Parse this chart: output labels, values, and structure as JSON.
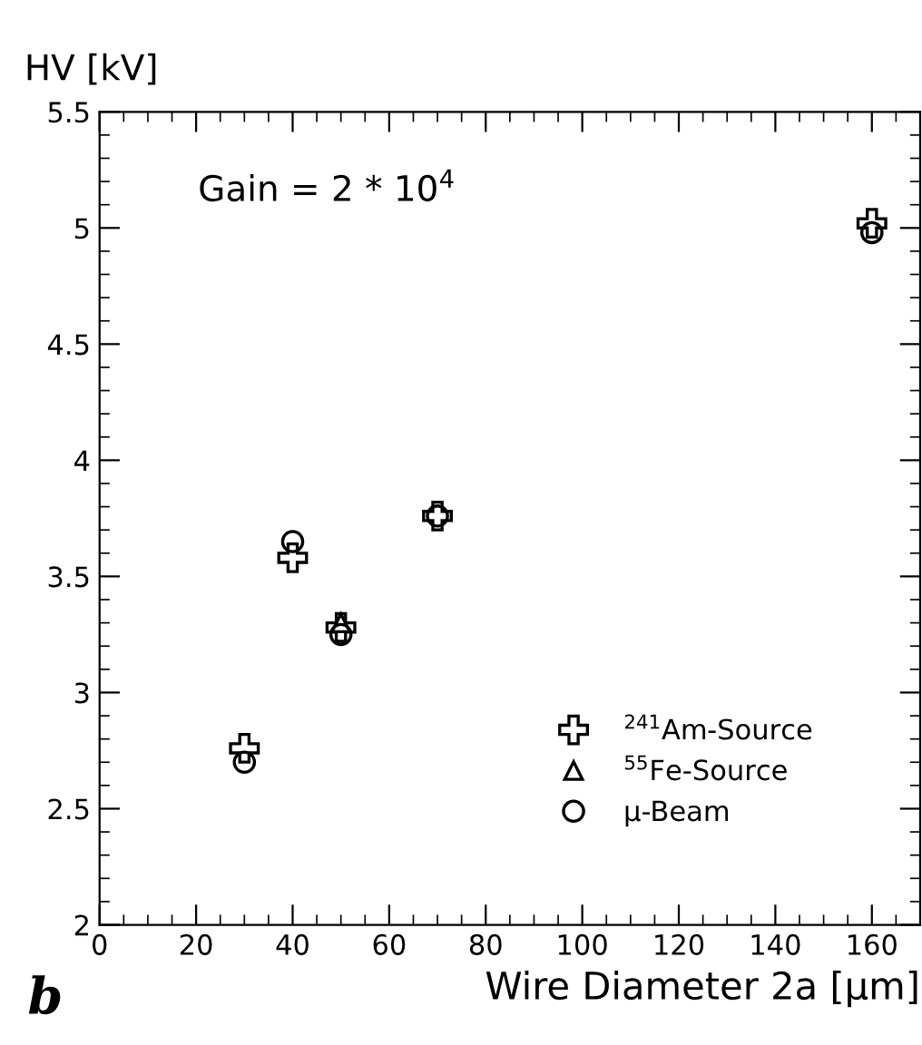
{
  "chart_data": {
    "type": "scatter",
    "xlabel": "Wire Diameter 2a [μm]",
    "ylabel": "HV [kV]",
    "xlim": [
      0,
      170
    ],
    "xticks": [
      0,
      20,
      40,
      60,
      80,
      100,
      120,
      140,
      160
    ],
    "ylim": [
      2,
      5.5
    ],
    "yticks": [
      2,
      2.5,
      3,
      3.5,
      4,
      4.5,
      5,
      5.5
    ],
    "grid": false,
    "legend": "bottom right",
    "annotations": [
      "Gain = 2 * 10$^{4}$",
      "b"
    ],
    "series": [
      {
        "name": "$^{241}$Am-Source",
        "color": "#000000",
        "marker": "cross",
        "x": [
          30,
          40,
          50,
          70,
          160
        ],
        "values": [
          2.76,
          3.58,
          3.28,
          3.76,
          5.02
        ]
      },
      {
        "name": "$^{55}$Fe-Source",
        "color": "#000000",
        "marker": "triangle",
        "x": [
          50
        ],
        "values": [
          3.3
        ]
      },
      {
        "name": "μ-Beam",
        "color": "#000000",
        "marker": "circle",
        "x": [
          30,
          40,
          50,
          70,
          160
        ],
        "values": [
          2.7,
          3.65,
          3.25,
          3.76,
          4.98
        ]
      }
    ]
  }
}
